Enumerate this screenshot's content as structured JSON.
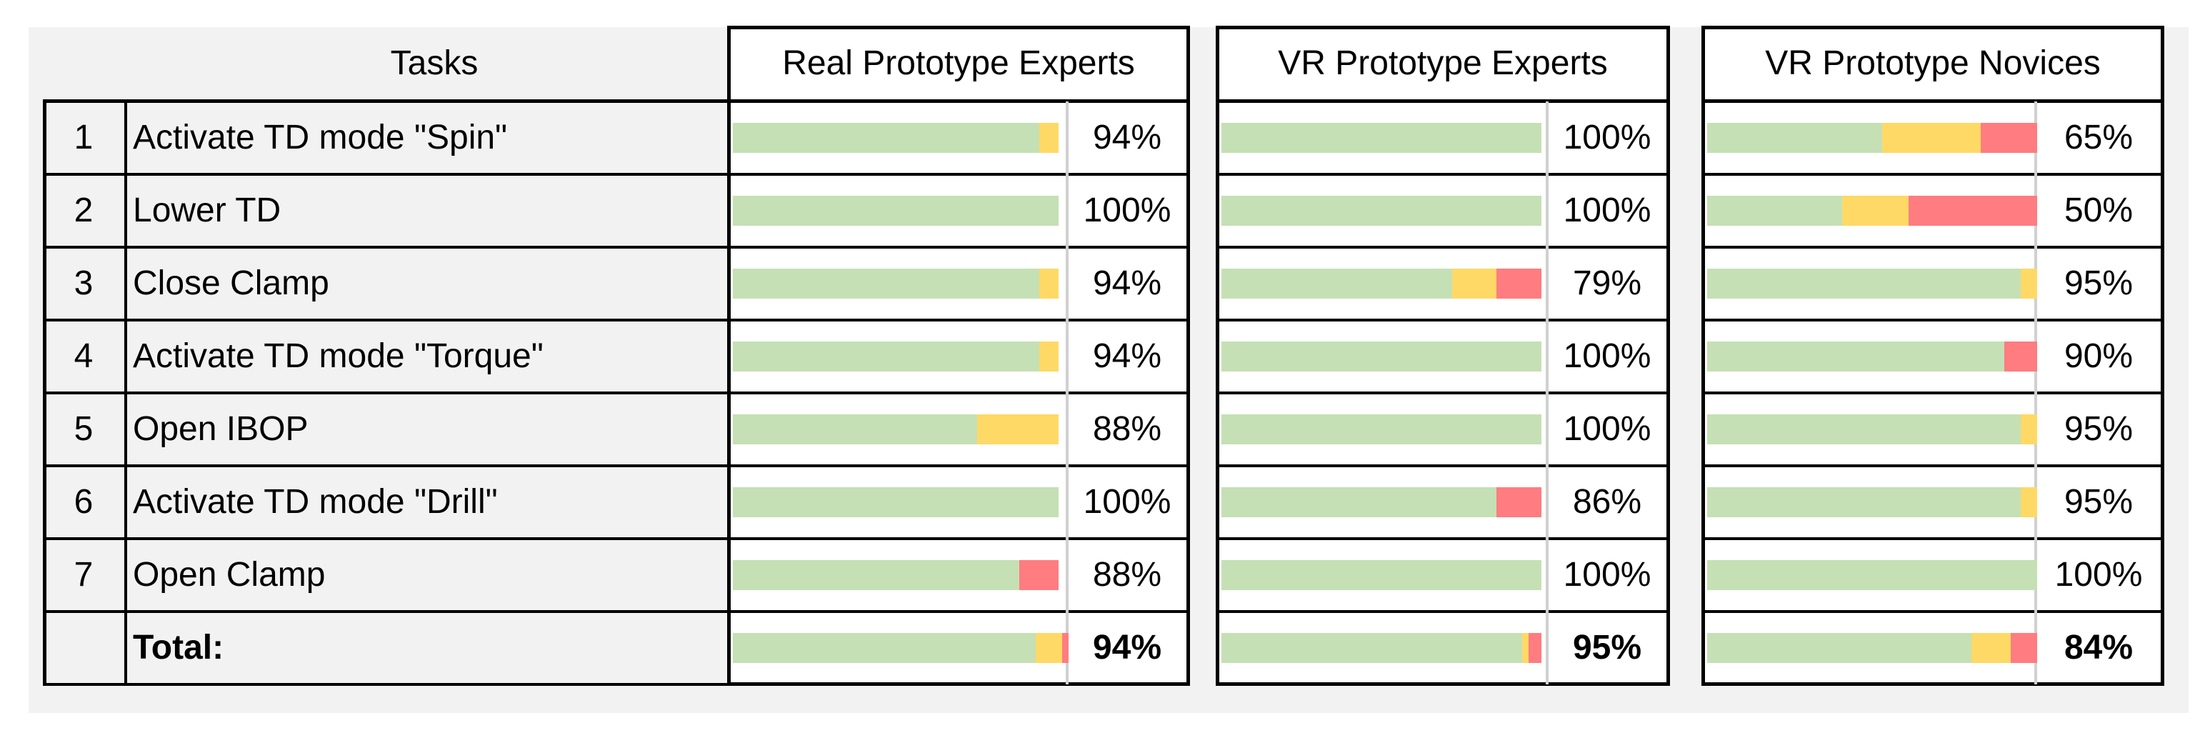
{
  "chart_data": {
    "type": "table",
    "title": "",
    "tasks_header": "Tasks",
    "groups": [
      "Real Prototype Experts",
      "VR Prototype Experts",
      "VR Prototype Novices"
    ],
    "rows": [
      {
        "num": "1",
        "task": "Activate TD mode \"Spin\"",
        "values": [
          [
            94,
            6,
            0
          ],
          [
            100,
            0,
            0
          ],
          [
            53,
            30,
            17
          ]
        ],
        "labels": [
          "94%",
          "100%",
          "65%"
        ]
      },
      {
        "num": "2",
        "task": "Lower TD",
        "values": [
          [
            100,
            0,
            0
          ],
          [
            100,
            0,
            0
          ],
          [
            41,
            20,
            39
          ]
        ],
        "labels": [
          "100%",
          "100%",
          "50%"
        ]
      },
      {
        "num": "3",
        "task": "Close Clamp",
        "values": [
          [
            94,
            6,
            0
          ],
          [
            72,
            14,
            14
          ],
          [
            95,
            5,
            0
          ]
        ],
        "labels": [
          "94%",
          "79%",
          "95%"
        ]
      },
      {
        "num": "4",
        "task": "Activate TD mode \"Torque\"",
        "values": [
          [
            94,
            6,
            0
          ],
          [
            100,
            0,
            0
          ],
          [
            90,
            0,
            10
          ]
        ],
        "labels": [
          "94%",
          "100%",
          "90%"
        ]
      },
      {
        "num": "5",
        "task": "Open IBOP",
        "values": [
          [
            75,
            25,
            0
          ],
          [
            100,
            0,
            0
          ],
          [
            95,
            5,
            0
          ]
        ],
        "labels": [
          "88%",
          "100%",
          "95%"
        ]
      },
      {
        "num": "6",
        "task": "Activate TD mode \"Drill\"",
        "values": [
          [
            100,
            0,
            0
          ],
          [
            86,
            0,
            14
          ],
          [
            95,
            5,
            0
          ]
        ],
        "labels": [
          "100%",
          "86%",
          "95%"
        ]
      },
      {
        "num": "7",
        "task": "Open Clamp",
        "values": [
          [
            88,
            0,
            12
          ],
          [
            100,
            0,
            0
          ],
          [
            100,
            0,
            0
          ]
        ],
        "labels": [
          "88%",
          "100%",
          "100%"
        ]
      }
    ],
    "total": {
      "num": "",
      "task": "Total:",
      "values": [
        [
          93,
          8,
          2
        ],
        [
          94,
          2,
          4
        ],
        [
          80,
          12,
          8
        ]
      ],
      "labels": [
        "94%",
        "95%",
        "84%"
      ]
    },
    "segment_colors": [
      "#c5e0b4",
      "#ffd966",
      "#ff7c80"
    ],
    "bar_scale_max": 100
  }
}
